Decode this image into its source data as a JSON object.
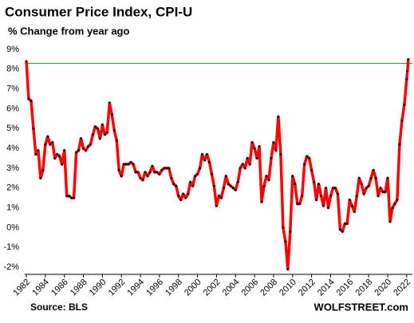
{
  "chart_data": {
    "type": "line",
    "title": "Consumer Price Index, CPI-U",
    "subtitle": "% Change from year ago",
    "source": "Source: BLS",
    "credit": "WOLFSTREET.com",
    "x": [
      1982,
      1982.25,
      1982.5,
      1982.75,
      1983,
      1983.25,
      1983.5,
      1983.75,
      1984,
      1984.25,
      1984.5,
      1984.75,
      1985,
      1985.25,
      1985.5,
      1985.75,
      1986,
      1986.25,
      1986.5,
      1986.75,
      1987,
      1987.25,
      1987.5,
      1987.75,
      1988,
      1988.25,
      1988.5,
      1988.75,
      1989,
      1989.25,
      1989.5,
      1989.75,
      1990,
      1990.25,
      1990.5,
      1990.75,
      1991,
      1991.25,
      1991.5,
      1991.75,
      1992,
      1992.25,
      1992.5,
      1992.75,
      1993,
      1993.25,
      1993.5,
      1993.75,
      1994,
      1994.25,
      1994.5,
      1994.75,
      1995,
      1995.25,
      1995.5,
      1995.75,
      1996,
      1996.25,
      1996.5,
      1996.75,
      1997,
      1997.25,
      1997.5,
      1997.75,
      1998,
      1998.25,
      1998.5,
      1998.75,
      1999,
      1999.25,
      1999.5,
      1999.75,
      2000,
      2000.25,
      2000.5,
      2000.75,
      2001,
      2001.25,
      2001.5,
      2001.75,
      2002,
      2002.25,
      2002.5,
      2002.75,
      2003,
      2003.25,
      2003.5,
      2003.75,
      2004,
      2004.25,
      2004.5,
      2004.75,
      2005,
      2005.25,
      2005.5,
      2005.75,
      2006,
      2006.25,
      2006.5,
      2006.75,
      2007,
      2007.25,
      2007.5,
      2007.75,
      2008,
      2008.25,
      2008.5,
      2008.75,
      2009,
      2009.25,
      2009.5,
      2009.75,
      2010,
      2010.25,
      2010.5,
      2010.75,
      2011,
      2011.25,
      2011.5,
      2011.75,
      2012,
      2012.25,
      2012.5,
      2012.75,
      2013,
      2013.25,
      2013.5,
      2013.75,
      2014,
      2014.25,
      2014.5,
      2014.75,
      2015,
      2015.25,
      2015.5,
      2015.75,
      2016,
      2016.25,
      2016.5,
      2016.75,
      2017,
      2017.25,
      2017.5,
      2017.75,
      2018,
      2018.25,
      2018.5,
      2018.75,
      2019,
      2019.25,
      2019.5,
      2019.75,
      2020,
      2020.25,
      2020.5,
      2020.75,
      2021,
      2021.25,
      2021.5,
      2021.75,
      2022,
      2022.083,
      2022.167
    ],
    "series": [
      {
        "name": "CPI-U",
        "color": "#ff0000",
        "marker_color": "#111111",
        "values": [
          8.4,
          6.5,
          6.4,
          5.0,
          3.7,
          3.9,
          2.5,
          2.9,
          4.2,
          4.6,
          4.2,
          4.3,
          3.5,
          3.7,
          3.6,
          3.2,
          3.9,
          1.6,
          1.6,
          1.5,
          1.5,
          3.8,
          3.9,
          4.5,
          4.0,
          3.9,
          4.1,
          4.2,
          4.7,
          5.1,
          5.0,
          4.5,
          5.2,
          4.7,
          4.8,
          6.3,
          5.7,
          4.9,
          4.4,
          2.9,
          2.6,
          3.2,
          3.2,
          3.2,
          3.3,
          3.2,
          2.8,
          2.8,
          2.5,
          2.4,
          2.8,
          2.6,
          2.8,
          3.1,
          2.8,
          2.8,
          2.7,
          2.9,
          3.0,
          3.0,
          3.0,
          2.5,
          2.2,
          2.1,
          1.6,
          1.4,
          1.7,
          1.5,
          1.7,
          2.3,
          2.1,
          2.6,
          2.7,
          3.0,
          3.7,
          3.4,
          3.7,
          3.3,
          2.7,
          2.1,
          1.1,
          1.6,
          1.5,
          2.0,
          2.6,
          2.2,
          2.1,
          2.0,
          1.9,
          2.3,
          3.0,
          3.2,
          3.0,
          3.5,
          3.2,
          4.3,
          4.0,
          3.5,
          4.1,
          1.3,
          2.1,
          2.6,
          2.4,
          3.5,
          4.3,
          3.9,
          5.6,
          3.7,
          0.0,
          -0.7,
          -2.1,
          -0.2,
          2.6,
          2.2,
          1.2,
          1.2,
          1.6,
          3.2,
          3.6,
          3.5,
          2.9,
          2.3,
          1.4,
          2.2,
          1.6,
          1.1,
          2.0,
          1.0,
          1.6,
          2.0,
          2.0,
          1.7,
          -0.1,
          -0.2,
          0.2,
          0.2,
          1.4,
          1.1,
          0.8,
          1.6,
          2.5,
          2.2,
          1.7,
          2.0,
          2.1,
          2.5,
          2.9,
          2.5,
          1.6,
          2.0,
          1.8,
          1.8,
          2.5,
          0.3,
          1.0,
          1.2,
          1.4,
          4.2,
          5.4,
          6.2,
          7.5,
          7.9,
          8.5
        ]
      }
    ],
    "reference_line": {
      "value": 8.3,
      "color": "#2e8b2e"
    },
    "xlim": [
      1982,
      2022.6
    ],
    "xticks": [
      1982,
      1984,
      1986,
      1988,
      1990,
      1992,
      1994,
      1996,
      1998,
      2000,
      2002,
      2004,
      2006,
      2008,
      2010,
      2012,
      2014,
      2016,
      2018,
      2020,
      2022
    ],
    "ylim": [
      -2,
      9
    ],
    "yticks": [
      {
        "value": -2,
        "label": "-2%"
      },
      {
        "value": -1,
        "label": "-1%"
      },
      {
        "value": 0,
        "label": "0%"
      },
      {
        "value": 1,
        "label": "1%"
      },
      {
        "value": 2,
        "label": "2%"
      },
      {
        "value": 3,
        "label": "3%"
      },
      {
        "value": 4,
        "label": "4%"
      },
      {
        "value": 5,
        "label": "5%"
      },
      {
        "value": 6,
        "label": "6%"
      },
      {
        "value": 7,
        "label": "7%"
      },
      {
        "value": 8,
        "label": "8%"
      },
      {
        "value": 9,
        "label": "9%"
      }
    ],
    "grid": false
  }
}
